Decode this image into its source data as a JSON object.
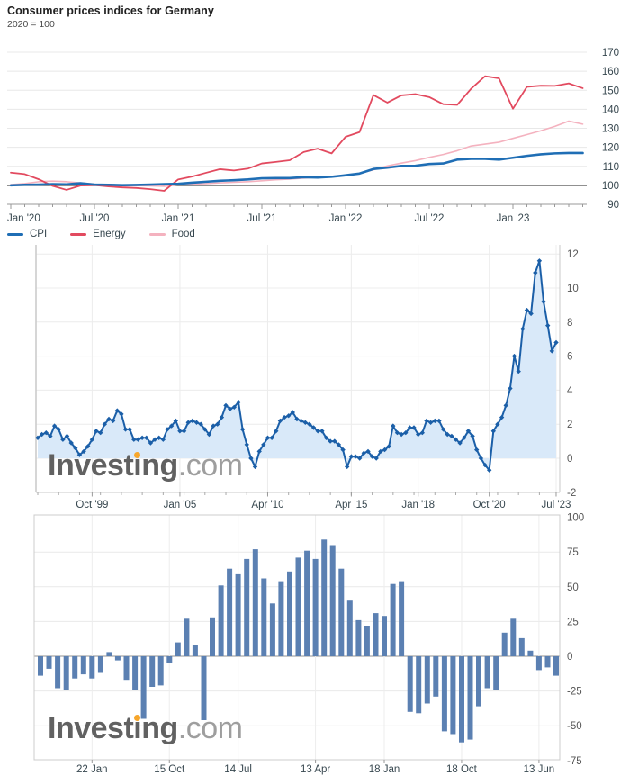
{
  "header": {
    "title": "Consumer prices indices for Germany",
    "subtitle": "2020 = 100"
  },
  "watermark": {
    "pre": "Invest",
    "i": "i",
    "post": "ng",
    "suffix": ".com"
  },
  "colors": {
    "cpi_blue": "#1f6eb5",
    "energy_red": "#e24a5f",
    "food_pink": "#f4b2bf",
    "inflation_line": "#1b5fa8",
    "inflation_fill": "#d9e9f9",
    "bar_blue": "#5b80b2",
    "grid_light": "#e8e8e8",
    "baseline_dark": "#4d4d4d",
    "axis_gray": "#999999",
    "tick_text": "#37474f",
    "value_text": "#555555",
    "watermark_gray": "#616161",
    "watermark_orange": "#f7a62b"
  },
  "chart_data": [
    {
      "id": "price-indices",
      "type": "line",
      "title": "Consumer prices indices for Germany",
      "subtitle": "2020 = 100",
      "grid": "horizontal",
      "legend_position": "bottom-left",
      "ylim": [
        90,
        170
      ],
      "y_ticks": [
        90,
        100,
        110,
        120,
        130,
        140,
        150,
        160,
        170
      ],
      "baseline": 100,
      "x_ticks": [
        "Jan '20",
        "Jul '20",
        "Jan '21",
        "Jul '21",
        "Jan '22",
        "Jul '22",
        "Jan '23"
      ],
      "x_tick_idx": [
        0,
        6,
        12,
        18,
        24,
        30,
        36
      ],
      "x_range_note": "monthly Jan 2020 - Jun 2023",
      "series": [
        {
          "name": "CPI",
          "color": "#1f6eb5",
          "values": [
            100.0,
            100.3,
            100.4,
            100.6,
            100.5,
            101.1,
            100.4,
            100.3,
            100.1,
            100.2,
            100.4,
            100.6,
            100.8,
            101.4,
            101.9,
            102.4,
            102.7,
            103.1,
            103.7,
            103.8,
            103.8,
            104.3,
            104.1,
            104.5,
            105.3,
            106.2,
            108.6,
            109.3,
            110.2,
            110.3,
            111.2,
            111.5,
            113.5,
            113.9,
            113.9,
            113.5,
            114.5,
            115.5,
            116.3,
            116.8,
            117.0,
            117.0
          ]
        },
        {
          "name": "Energy",
          "color": "#e24a5f",
          "values": [
            106.7,
            105.9,
            103.2,
            99.7,
            97.6,
            99.9,
            100.1,
            99.4,
            98.9,
            98.6,
            98.0,
            97.1,
            103.1,
            104.6,
            106.6,
            108.5,
            107.8,
            108.8,
            111.5,
            112.3,
            113.2,
            117.5,
            119.3,
            116.8,
            125.5,
            128.0,
            147.5,
            143.5,
            147.3,
            148.0,
            146.4,
            142.7,
            142.3,
            150.8,
            157.4,
            156.3,
            140.3,
            151.8,
            152.4,
            152.3,
            153.6,
            151.1
          ]
        },
        {
          "name": "Food",
          "color": "#f4b2bf",
          "values": [
            100.4,
            100.9,
            101.9,
            102.2,
            101.9,
            101.3,
            100.6,
            100.1,
            99.6,
            99.9,
            99.7,
            99.5,
            100.4,
            100.7,
            100.9,
            101.3,
            101.6,
            101.9,
            102.4,
            102.9,
            103.3,
            103.8,
            104.2,
            104.7,
            105.3,
            106.2,
            108.2,
            110.2,
            111.7,
            113.0,
            114.7,
            116.2,
            118.2,
            120.7,
            121.7,
            122.7,
            124.7,
            126.7,
            128.7,
            131.0,
            133.8,
            132.2
          ]
        }
      ]
    },
    {
      "id": "inflation-rate-yoy",
      "type": "area",
      "marker": "diamond",
      "line_color": "#1b5fa8",
      "fill_color": "#d9e9f9",
      "ylim": [
        -2,
        12.5
      ],
      "y_ticks": [
        -2,
        0,
        2,
        4,
        6,
        8,
        10,
        12
      ],
      "x_ticks": [
        {
          "label": "Oct '99",
          "i": 13
        },
        {
          "label": "Jan '05",
          "i": 34
        },
        {
          "label": "Apr '10",
          "i": 55
        },
        {
          "label": "Apr '15",
          "i": 75
        },
        {
          "label": "Jan '18",
          "i": 91
        },
        {
          "label": "Oct '20",
          "i": 108
        },
        {
          "label": "Jul '23",
          "i": 124
        }
      ],
      "values": [
        1.2,
        1.4,
        1.5,
        1.3,
        1.9,
        1.7,
        1.1,
        1.3,
        0.9,
        0.6,
        0.2,
        0.4,
        0.7,
        1.1,
        1.6,
        1.5,
        2.0,
        2.3,
        2.2,
        2.8,
        2.6,
        1.7,
        1.7,
        1.1,
        1.1,
        1.2,
        1.2,
        0.9,
        1.1,
        1.2,
        1.1,
        1.7,
        1.9,
        2.2,
        1.6,
        1.6,
        2.1,
        2.2,
        2.1,
        2.0,
        1.7,
        1.4,
        1.9,
        2.0,
        2.4,
        3.1,
        2.9,
        3.0,
        3.3,
        1.7,
        0.8,
        0.0,
        -0.5,
        0.4,
        0.8,
        1.2,
        1.2,
        1.6,
        2.2,
        2.4,
        2.5,
        2.7,
        2.3,
        2.2,
        2.1,
        2.0,
        1.8,
        1.6,
        1.6,
        1.2,
        1.0,
        1.0,
        0.8,
        0.5,
        -0.5,
        0.1,
        0.1,
        0.0,
        0.3,
        0.4,
        0.1,
        0.0,
        0.4,
        0.5,
        0.7,
        1.9,
        1.5,
        1.4,
        1.5,
        1.8,
        1.8,
        1.4,
        1.5,
        2.2,
        2.1,
        2.2,
        2.2,
        1.7,
        1.4,
        1.3,
        1.1,
        0.9,
        1.2,
        1.6,
        1.3,
        0.5,
        0.0,
        -0.4,
        -0.7,
        1.6,
        2.0,
        2.4,
        3.1,
        4.1,
        6.0,
        5.1,
        7.6,
        8.7,
        8.5,
        10.9,
        11.6,
        9.2,
        7.8,
        6.3,
        6.8
      ]
    },
    {
      "id": "change-bars",
      "type": "bar",
      "bar_color": "#5b80b2",
      "ylim": [
        -75,
        100
      ],
      "y_ticks": [
        100,
        75,
        50,
        25,
        0,
        -25,
        -50,
        -75
      ],
      "x_ticks": [
        {
          "label": "22 Jan",
          "i": 6
        },
        {
          "label": "15 Oct",
          "i": 15
        },
        {
          "label": "14 Jul",
          "i": 23
        },
        {
          "label": "13 Apr",
          "i": 32
        },
        {
          "label": "18 Jan",
          "i": 40
        },
        {
          "label": "18 Oct",
          "i": 49
        },
        {
          "label": "13 Jun",
          "i": 58
        }
      ],
      "values": [
        -14,
        -9,
        -23,
        -24,
        -16,
        -13,
        -16,
        -12,
        3,
        -3,
        -17,
        -24,
        -45,
        -22,
        -21,
        -5,
        10,
        27,
        8,
        -46,
        28,
        51,
        63,
        59,
        70,
        77,
        56,
        38,
        54,
        61,
        71,
        76,
        70,
        84,
        80,
        63,
        40,
        26,
        22,
        31,
        29,
        52,
        54,
        -40,
        -41,
        -34,
        -29,
        -54,
        -56,
        -62,
        -60,
        -36,
        -23,
        -24,
        17,
        27,
        13,
        4,
        -10,
        -8,
        -14
      ]
    }
  ]
}
